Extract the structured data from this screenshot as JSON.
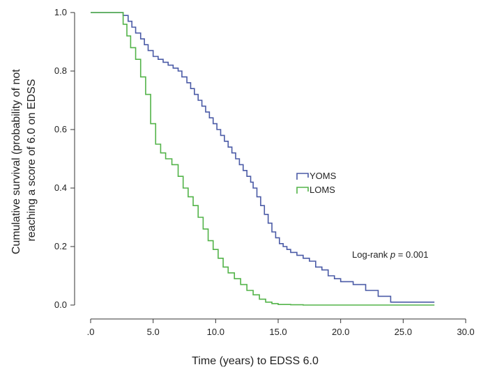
{
  "chart_data": {
    "type": "line",
    "step": true,
    "title": "",
    "xlabel": "Time (years) to EDSS 6.0",
    "ylabel_lines": [
      "Cumulative survival (probability of not",
      "reaching a score of 6.0 on EDSS"
    ],
    "xlim": [
      0,
      30
    ],
    "ylim": [
      0,
      1.0
    ],
    "x_ticks": [
      0,
      5,
      10,
      15,
      20,
      25,
      30
    ],
    "x_tick_labels": [
      ".0",
      "5.0",
      "10.0",
      "15.0",
      "20.0",
      "25.0",
      "30.0"
    ],
    "y_ticks": [
      0,
      0.2,
      0.4,
      0.6,
      0.8,
      1.0
    ],
    "y_tick_labels": [
      "0.0",
      "0.2",
      "0.4",
      "0.6",
      "0.8",
      "1.0"
    ],
    "grid": false,
    "legend_position": "center-right",
    "annotation": {
      "prefix": "Log-rank ",
      "italic": "p",
      "suffix": " = 0.001"
    },
    "series": [
      {
        "name": "YOMS",
        "color": "#4a5aa6",
        "x": [
          0,
          2.6,
          3.0,
          3.3,
          3.6,
          4.0,
          4.3,
          4.6,
          5.0,
          5.4,
          5.8,
          6.2,
          6.6,
          7.0,
          7.3,
          7.7,
          8.0,
          8.3,
          8.6,
          8.9,
          9.2,
          9.5,
          9.8,
          10.1,
          10.4,
          10.7,
          11.0,
          11.3,
          11.6,
          11.9,
          12.2,
          12.5,
          12.8,
          13.0,
          13.3,
          13.6,
          13.9,
          14.2,
          14.5,
          14.8,
          15.1,
          15.4,
          15.7,
          16.0,
          16.5,
          17.0,
          17.5,
          18.0,
          18.5,
          19.0,
          19.5,
          20.0,
          21.0,
          22.0,
          23.0,
          24.0,
          27.5
        ],
        "y": [
          1.0,
          0.99,
          0.97,
          0.95,
          0.93,
          0.91,
          0.89,
          0.87,
          0.85,
          0.84,
          0.83,
          0.82,
          0.81,
          0.8,
          0.78,
          0.76,
          0.74,
          0.72,
          0.7,
          0.68,
          0.66,
          0.64,
          0.62,
          0.6,
          0.58,
          0.56,
          0.54,
          0.52,
          0.5,
          0.48,
          0.46,
          0.44,
          0.42,
          0.4,
          0.37,
          0.34,
          0.31,
          0.28,
          0.25,
          0.23,
          0.21,
          0.2,
          0.19,
          0.18,
          0.17,
          0.16,
          0.15,
          0.13,
          0.12,
          0.1,
          0.09,
          0.08,
          0.07,
          0.05,
          0.03,
          0.01,
          0.01
        ]
      },
      {
        "name": "LOMS",
        "color": "#52b348",
        "x": [
          0,
          2.6,
          2.9,
          3.2,
          3.6,
          4.0,
          4.4,
          4.8,
          5.2,
          5.6,
          6.0,
          6.5,
          7.0,
          7.4,
          7.8,
          8.2,
          8.6,
          9.0,
          9.4,
          9.8,
          10.2,
          10.6,
          11.0,
          11.5,
          12.0,
          12.5,
          13.0,
          13.5,
          14.0,
          14.5,
          15.0,
          16.0,
          17.0,
          27.5
        ],
        "y": [
          1.0,
          0.96,
          0.92,
          0.88,
          0.84,
          0.78,
          0.72,
          0.62,
          0.55,
          0.52,
          0.5,
          0.48,
          0.44,
          0.4,
          0.37,
          0.34,
          0.3,
          0.26,
          0.22,
          0.19,
          0.16,
          0.13,
          0.11,
          0.09,
          0.07,
          0.05,
          0.035,
          0.02,
          0.01,
          0.005,
          0.002,
          0.001,
          0.0,
          0.0
        ]
      }
    ]
  }
}
